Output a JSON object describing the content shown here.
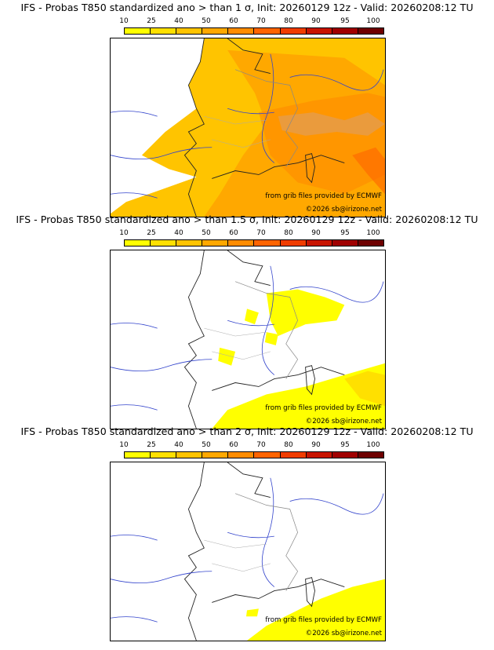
{
  "colorbar": {
    "ticks": [
      "10",
      "25",
      "40",
      "50",
      "60",
      "70",
      "80",
      "90",
      "95",
      "100"
    ],
    "colors": [
      "#ffff00",
      "#ffe000",
      "#ffc400",
      "#ffa800",
      "#ff8c00",
      "#ff6400",
      "#f03c00",
      "#c81400",
      "#a00000",
      "#6e0000"
    ]
  },
  "panels": [
    {
      "title": "IFS - Probas T850  standardized ano > than 1 σ, Init: 20260129 12z - Valid: 20260208:12 TU",
      "credit_source": "from grib files provided by ECMWF",
      "credit_copyright": "©2026 sb@irizone.net"
    },
    {
      "title": "IFS - Probas T850  standardized ano > than 1.5 σ, Init: 20260129 12z - Valid: 20260208:12 TU",
      "credit_source": "from grib files provided by ECMWF",
      "credit_copyright": "©2026 sb@irizone.net"
    },
    {
      "title": "IFS - Probas T850  standardized ano > than 2 σ, Init: 20260129 12z - Valid: 20260208:12 TU",
      "credit_source": "from grib files provided by ECMWF",
      "credit_copyright": "©2026 sb@irizone.net"
    }
  ]
}
